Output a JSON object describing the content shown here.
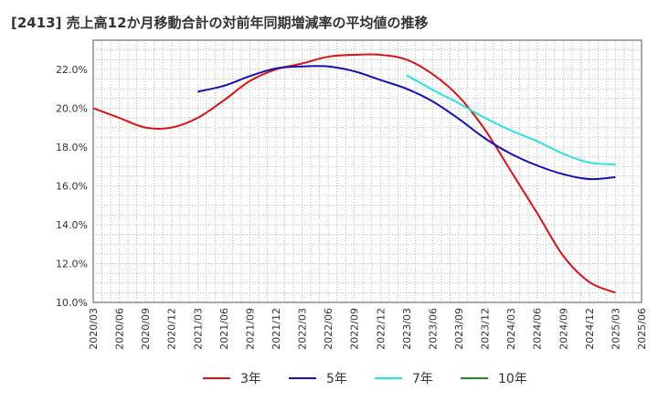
{
  "chart_data": {
    "type": "line",
    "title": "[2413]  売上高12か月移動合計の対前年同期増減率の平均値の推移",
    "xlabel": "",
    "ylabel": "",
    "ylim": [
      10,
      23.5
    ],
    "y_ticks": [
      "10.0%",
      "12.0%",
      "14.0%",
      "16.0%",
      "18.0%",
      "20.0%",
      "22.0%"
    ],
    "y_tick_values": [
      10,
      12,
      14,
      16,
      18,
      20,
      22
    ],
    "x_ticks": [
      "2020/03",
      "2020/06",
      "2020/09",
      "2020/12",
      "2021/03",
      "2021/06",
      "2021/09",
      "2021/12",
      "2022/03",
      "2022/06",
      "2022/09",
      "2022/12",
      "2023/03",
      "2023/06",
      "2023/09",
      "2023/12",
      "2024/03",
      "2024/06",
      "2024/09",
      "2024/12",
      "2025/03",
      "2025/06"
    ],
    "grid": true,
    "legend_position": "bottom",
    "series": [
      {
        "name": "3年",
        "color": "#dd1111",
        "points": [
          [
            "2020/03",
            20.0
          ],
          [
            "2020/06",
            19.5
          ],
          [
            "2020/09",
            19.0
          ],
          [
            "2020/12",
            19.0
          ],
          [
            "2021/03",
            19.5
          ],
          [
            "2021/06",
            20.4
          ],
          [
            "2021/09",
            21.4
          ],
          [
            "2021/12",
            22.0
          ],
          [
            "2022/03",
            22.3
          ],
          [
            "2022/06",
            22.65
          ],
          [
            "2022/09",
            22.75
          ],
          [
            "2022/12",
            22.75
          ],
          [
            "2023/03",
            22.5
          ],
          [
            "2023/06",
            21.75
          ],
          [
            "2023/09",
            20.6
          ],
          [
            "2023/12",
            18.9
          ],
          [
            "2024/03",
            16.75
          ],
          [
            "2024/06",
            14.6
          ],
          [
            "2024/09",
            12.4
          ],
          [
            "2024/12",
            11.05
          ],
          [
            "2025/03",
            10.5
          ]
        ]
      },
      {
        "name": "5年",
        "color": "#1111bb",
        "points": [
          [
            "2021/03",
            20.85
          ],
          [
            "2021/06",
            21.15
          ],
          [
            "2021/09",
            21.65
          ],
          [
            "2021/12",
            22.05
          ],
          [
            "2022/03",
            22.15
          ],
          [
            "2022/06",
            22.15
          ],
          [
            "2022/09",
            21.9
          ],
          [
            "2022/12",
            21.45
          ],
          [
            "2023/03",
            21.0
          ],
          [
            "2023/06",
            20.35
          ],
          [
            "2023/09",
            19.45
          ],
          [
            "2023/12",
            18.45
          ],
          [
            "2024/03",
            17.65
          ],
          [
            "2024/06",
            17.05
          ],
          [
            "2024/09",
            16.6
          ],
          [
            "2024/12",
            16.35
          ],
          [
            "2025/03",
            16.45
          ]
        ]
      },
      {
        "name": "7年",
        "color": "#22e5e5",
        "points": [
          [
            "2023/03",
            21.7
          ],
          [
            "2023/06",
            20.95
          ],
          [
            "2023/09",
            20.25
          ],
          [
            "2023/12",
            19.5
          ],
          [
            "2024/03",
            18.85
          ],
          [
            "2024/06",
            18.3
          ],
          [
            "2024/09",
            17.65
          ],
          [
            "2024/12",
            17.2
          ],
          [
            "2025/03",
            17.1
          ]
        ]
      },
      {
        "name": "10年",
        "color": "#228822",
        "points": []
      }
    ]
  }
}
